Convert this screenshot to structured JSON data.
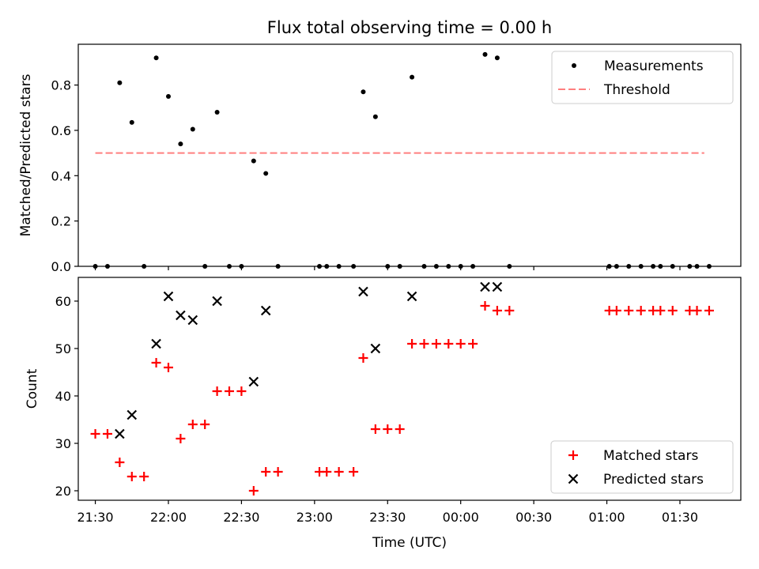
{
  "figure": {
    "title": "Flux total observing time = 0.00 h"
  },
  "chart_data": [
    {
      "type": "scatter",
      "panel": "top",
      "xlabel": "",
      "ylabel": "Matched/Predicted stars",
      "xlim": [
        "21:23",
        "01:55"
      ],
      "ylim": [
        0,
        0.98
      ],
      "yticks": [
        0.0,
        0.2,
        0.4,
        0.6,
        0.8
      ],
      "series": [
        {
          "name": "Measurements",
          "style": "dot",
          "color": "#000000",
          "x": [
            "21:30",
            "21:35",
            "21:40",
            "21:45",
            "21:50",
            "21:55",
            "22:00",
            "22:05",
            "22:10",
            "22:15",
            "22:20",
            "22:25",
            "22:30",
            "22:35",
            "22:40",
            "22:45",
            "23:02",
            "23:05",
            "23:10",
            "23:16",
            "23:20",
            "23:25",
            "23:30",
            "23:35",
            "23:40",
            "23:45",
            "23:50",
            "23:55",
            "00:00",
            "00:05",
            "00:10",
            "00:15",
            "00:20",
            "01:01",
            "01:04",
            "01:09",
            "01:14",
            "01:19",
            "01:22",
            "01:27",
            "01:34",
            "01:37",
            "01:42"
          ],
          "y": [
            0,
            0,
            0.81,
            0.635,
            0,
            0.92,
            0.75,
            0.54,
            0.605,
            0,
            0.68,
            0,
            0,
            0.465,
            0.41,
            0,
            0,
            0,
            0,
            0,
            0.77,
            0.66,
            0,
            0,
            0.835,
            0,
            0,
            0,
            0,
            0,
            0.935,
            0.92,
            0,
            0,
            0,
            0,
            0,
            0,
            0,
            0,
            0,
            0,
            0
          ]
        },
        {
          "name": "Threshold",
          "style": "dashed-line",
          "color": "#ff7f7f",
          "x": [
            "21:30",
            "01:40"
          ],
          "y": [
            0.5,
            0.5
          ]
        }
      ],
      "legend_position": "top-right"
    },
    {
      "type": "scatter",
      "panel": "bottom",
      "xlabel": "Time (UTC)",
      "ylabel": "Count",
      "xlim": [
        "21:23",
        "01:55"
      ],
      "ylim": [
        18,
        65
      ],
      "xticks": [
        "21:30",
        "22:00",
        "22:30",
        "23:00",
        "23:30",
        "00:00",
        "00:30",
        "01:00",
        "01:30"
      ],
      "yticks": [
        20,
        30,
        40,
        50,
        60
      ],
      "series": [
        {
          "name": "Matched stars",
          "style": "plus",
          "color": "#ff0000",
          "x": [
            "21:30",
            "21:35",
            "21:40",
            "21:45",
            "21:50",
            "21:55",
            "22:00",
            "22:05",
            "22:10",
            "22:15",
            "22:20",
            "22:25",
            "22:30",
            "22:35",
            "22:40",
            "22:45",
            "23:02",
            "23:05",
            "23:10",
            "23:16",
            "23:20",
            "23:25",
            "23:30",
            "23:35",
            "23:40",
            "23:45",
            "23:50",
            "23:55",
            "00:00",
            "00:05",
            "00:10",
            "00:15",
            "00:20",
            "01:01",
            "01:04",
            "01:09",
            "01:14",
            "01:19",
            "01:22",
            "01:27",
            "01:34",
            "01:37",
            "01:42"
          ],
          "y": [
            32,
            32,
            26,
            23,
            23,
            47,
            46,
            31,
            34,
            34,
            41,
            41,
            41,
            20,
            24,
            24,
            24,
            24,
            24,
            24,
            48,
            33,
            33,
            33,
            51,
            51,
            51,
            51,
            51,
            51,
            59,
            58,
            58,
            58,
            58,
            58,
            58,
            58,
            58,
            58,
            58,
            58,
            58
          ]
        },
        {
          "name": "Predicted stars",
          "style": "x",
          "color": "#000000",
          "x": [
            "21:40",
            "21:45",
            "21:55",
            "22:00",
            "22:05",
            "22:10",
            "22:20",
            "22:35",
            "22:40",
            "23:20",
            "23:25",
            "23:40",
            "00:10",
            "00:15"
          ],
          "y": [
            32,
            36,
            51,
            61,
            57,
            56,
            60,
            43,
            58,
            62,
            50,
            61,
            63,
            63
          ]
        }
      ],
      "legend_position": "bottom-right"
    }
  ]
}
